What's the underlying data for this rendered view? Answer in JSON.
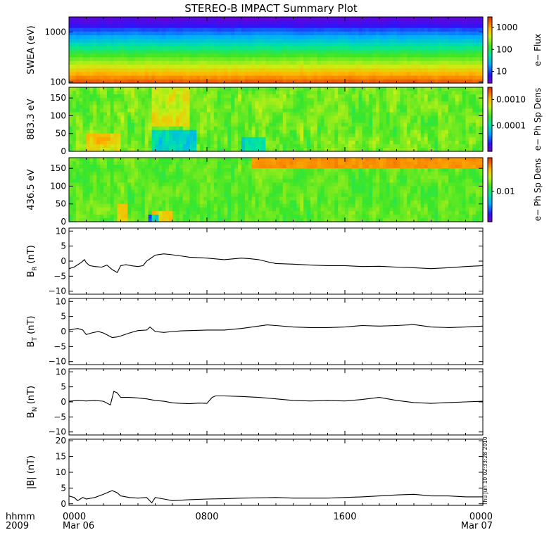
{
  "title": "STEREO-B IMPACT Summary Plot",
  "footer": {
    "hhmm": "hhmm",
    "year": "2009"
  },
  "timestamp": "Thu Jun 10 02:33:28 2010",
  "x_ticks": [
    {
      "hours": 0,
      "label": "0000",
      "sublabel": "Mar 06"
    },
    {
      "hours": 8,
      "label": "0800",
      "sublabel": ""
    },
    {
      "hours": 16,
      "label": "1600",
      "sublabel": ""
    },
    {
      "hours": 24,
      "label": "0000",
      "sublabel": "Mar 07"
    }
  ],
  "chart_data": [
    {
      "type": "heatmap",
      "panel": "swea",
      "ylabel": "SWEA (eV)",
      "yscale": "log",
      "ylim": [
        95,
        2000
      ],
      "yticks": [
        {
          "value": 100,
          "label": "100"
        },
        {
          "value": 1000,
          "label": "1000"
        }
      ],
      "colorbar": {
        "label": "e− Flux",
        "scale": "log",
        "range": [
          3,
          3000
        ],
        "ticks": [
          {
            "value": 10,
            "label": "10"
          },
          {
            "value": 100,
            "label": "100"
          },
          {
            "value": 1000,
            "label": "1000"
          }
        ]
      }
    },
    {
      "type": "heatmap",
      "panel": "pad883",
      "ylabel": "883.3 eV",
      "ylim": [
        0,
        180
      ],
      "yticks": [
        {
          "value": 0,
          "label": "0"
        },
        {
          "value": 50,
          "label": "50"
        },
        {
          "value": 100,
          "label": "100"
        },
        {
          "value": 150,
          "label": "150"
        }
      ],
      "colorbar": {
        "label": "e− Ph Sp Dens",
        "scale": "log",
        "range": [
          1e-05,
          0.003
        ],
        "ticks": [
          {
            "value": 0.0001,
            "label": "0.0001"
          },
          {
            "value": 0.001,
            "label": "0.0010"
          }
        ]
      }
    },
    {
      "type": "heatmap",
      "panel": "pad436",
      "ylabel": "436.5 eV",
      "ylim": [
        0,
        180
      ],
      "yticks": [
        {
          "value": 0,
          "label": "0"
        },
        {
          "value": 50,
          "label": "50"
        },
        {
          "value": 100,
          "label": "100"
        },
        {
          "value": 150,
          "label": "150"
        }
      ],
      "colorbar": {
        "label": "e− Ph Sp Dens",
        "scale": "log",
        "range": [
          0.002,
          0.06
        ],
        "ticks": [
          {
            "value": 0.01,
            "label": "0.01"
          }
        ]
      }
    },
    {
      "type": "line",
      "panel": "br",
      "ylabel": "B",
      "ylabel_sub": "R",
      "ylabel_unit": " (nT)",
      "ylim": [
        -11,
        11
      ],
      "yticks": [
        {
          "value": -10,
          "label": "−10"
        },
        {
          "value": -5,
          "label": "−5"
        },
        {
          "value": 0,
          "label": "0"
        },
        {
          "value": 5,
          "label": "5"
        },
        {
          "value": 10,
          "label": "10"
        }
      ],
      "x": [
        0,
        0.3,
        0.7,
        0.9,
        1.0,
        1.2,
        1.5,
        1.9,
        2.2,
        2.5,
        2.8,
        3.0,
        3.3,
        3.7,
        4.0,
        4.3,
        4.5,
        5.0,
        5.5,
        6.0,
        7.0,
        8.0,
        9.0,
        10.0,
        10.5,
        11.0,
        11.5,
        12.0,
        13.0,
        14.0,
        15.0,
        16.0,
        17.0,
        18.0,
        19.0,
        20.0,
        21.0,
        22.0,
        23.0,
        24.0
      ],
      "values": [
        -2.5,
        -2.0,
        -0.5,
        0.5,
        -0.5,
        -1.5,
        -1.8,
        -2.0,
        -1.3,
        -2.8,
        -3.8,
        -1.5,
        -1.2,
        -1.6,
        -1.8,
        -1.5,
        0.0,
        2.0,
        2.4,
        2.1,
        1.3,
        1.0,
        0.5,
        1.0,
        0.8,
        0.5,
        -0.2,
        -0.8,
        -1.0,
        -1.3,
        -1.5,
        -1.5,
        -1.8,
        -1.7,
        -2.0,
        -2.2,
        -2.5,
        -2.2,
        -1.8,
        -1.5
      ]
    },
    {
      "type": "line",
      "panel": "bt",
      "ylabel": "B",
      "ylabel_sub": "T",
      "ylabel_unit": " (nT)",
      "ylim": [
        -11,
        11
      ],
      "yticks": [
        {
          "value": -10,
          "label": "−10"
        },
        {
          "value": -5,
          "label": "−5"
        },
        {
          "value": 0,
          "label": "0"
        },
        {
          "value": 5,
          "label": "5"
        },
        {
          "value": 10,
          "label": "10"
        }
      ],
      "x": [
        0,
        0.5,
        0.8,
        1.0,
        1.3,
        1.7,
        2.0,
        2.5,
        2.8,
        3.0,
        3.5,
        4.0,
        4.5,
        4.7,
        5.0,
        5.5,
        6.0,
        6.5,
        7.0,
        8.0,
        9.0,
        10.0,
        11.0,
        11.5,
        12.0,
        13.0,
        14.0,
        15.0,
        16.0,
        17.0,
        18.0,
        19.0,
        20.0,
        21.0,
        22.0,
        23.0,
        24.0
      ],
      "values": [
        0.5,
        1.0,
        0.5,
        -1.0,
        -0.5,
        0.0,
        -0.5,
        -2.0,
        -1.8,
        -1.5,
        -0.5,
        0.3,
        0.5,
        1.5,
        0.0,
        -0.3,
        0.0,
        0.2,
        0.3,
        0.5,
        0.5,
        1.0,
        1.8,
        2.2,
        2.0,
        1.5,
        1.3,
        1.3,
        1.5,
        2.0,
        1.8,
        2.0,
        2.3,
        1.5,
        1.3,
        1.5,
        1.8
      ]
    },
    {
      "type": "line",
      "panel": "bn",
      "ylabel": "B",
      "ylabel_sub": "N",
      "ylabel_unit": " (nT)",
      "ylim": [
        -11,
        11
      ],
      "yticks": [
        {
          "value": -10,
          "label": "−10"
        },
        {
          "value": -5,
          "label": "−5"
        },
        {
          "value": 0,
          "label": "0"
        },
        {
          "value": 5,
          "label": "5"
        },
        {
          "value": 10,
          "label": "10"
        }
      ],
      "x": [
        0,
        0.5,
        1.0,
        1.5,
        2.0,
        2.4,
        2.6,
        2.8,
        3.0,
        3.5,
        4.0,
        4.5,
        5.0,
        5.5,
        6.0,
        6.5,
        7.0,
        7.5,
        8.0,
        8.3,
        8.5,
        9.0,
        10.0,
        11.0,
        12.0,
        13.0,
        14.0,
        15.0,
        16.0,
        17.0,
        18.0,
        19.0,
        20.0,
        21.0,
        22.0,
        23.0,
        24.0
      ],
      "values": [
        0.2,
        0.5,
        0.3,
        0.5,
        0.2,
        -1.0,
        3.5,
        3.0,
        1.5,
        1.5,
        1.3,
        1.0,
        0.5,
        0.2,
        -0.3,
        -0.5,
        -0.6,
        -0.4,
        -0.5,
        1.5,
        2.0,
        2.0,
        1.8,
        1.5,
        1.0,
        0.5,
        0.3,
        0.5,
        0.3,
        0.8,
        1.5,
        0.5,
        -0.2,
        -0.5,
        -0.2,
        0.0,
        0.2
      ]
    },
    {
      "type": "line",
      "panel": "bmag",
      "ylabel": "|B| (nT)",
      "ylim": [
        -0.5,
        20.5
      ],
      "yticks": [
        {
          "value": 0,
          "label": "0"
        },
        {
          "value": 5,
          "label": "5"
        },
        {
          "value": 10,
          "label": "10"
        },
        {
          "value": 15,
          "label": "15"
        },
        {
          "value": 20,
          "label": "20"
        }
      ],
      "x": [
        0,
        0.3,
        0.5,
        0.8,
        1.0,
        1.5,
        2.0,
        2.5,
        2.8,
        3.0,
        3.5,
        4.0,
        4.5,
        4.8,
        5.0,
        5.5,
        6.0,
        7.0,
        8.0,
        9.0,
        10.0,
        11.0,
        12.0,
        13.0,
        14.0,
        15.0,
        16.0,
        17.0,
        18.0,
        19.0,
        20.0,
        21.0,
        22.0,
        23.0,
        24.0
      ],
      "values": [
        2.5,
        2.0,
        1.0,
        2.0,
        1.5,
        2.0,
        3.0,
        4.2,
        3.5,
        2.5,
        2.0,
        1.8,
        2.0,
        0.3,
        2.0,
        1.5,
        1.0,
        1.3,
        1.5,
        1.6,
        1.8,
        1.9,
        2.0,
        1.8,
        1.8,
        1.8,
        2.0,
        2.2,
        2.5,
        2.8,
        3.0,
        2.5,
        2.5,
        2.2,
        2.2
      ]
    }
  ]
}
